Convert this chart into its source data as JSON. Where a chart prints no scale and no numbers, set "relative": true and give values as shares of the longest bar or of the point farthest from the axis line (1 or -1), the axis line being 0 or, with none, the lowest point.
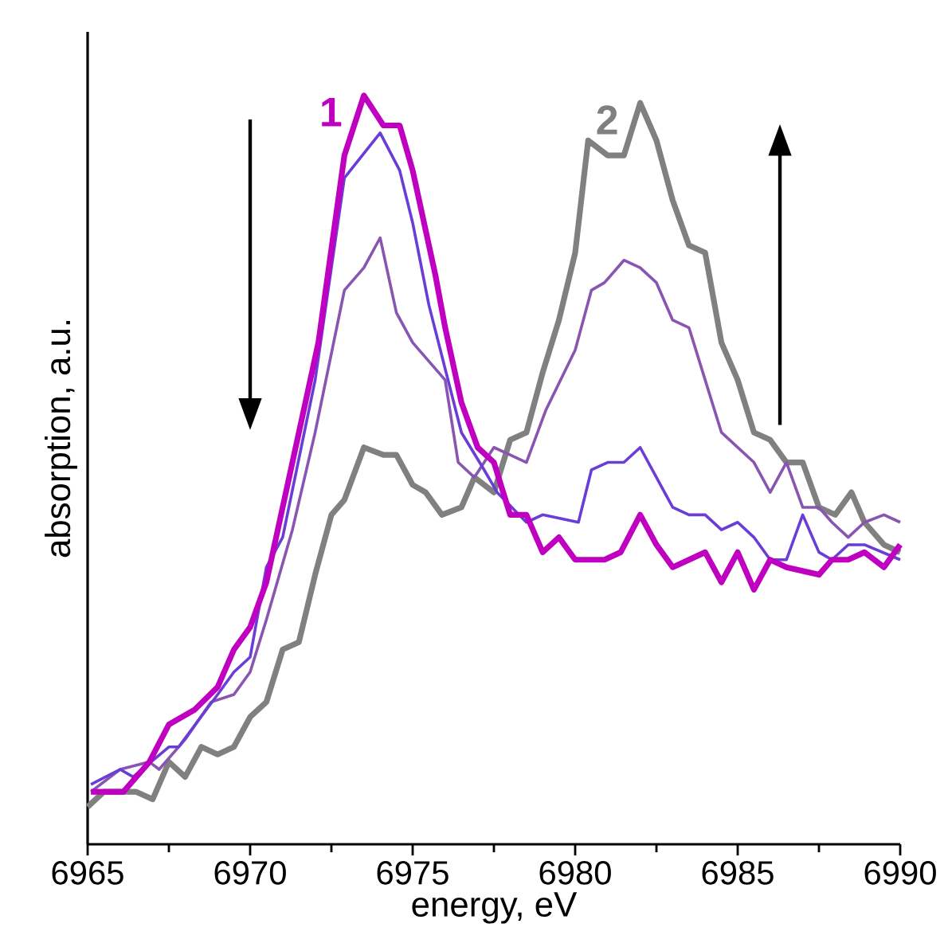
{
  "chart_data": {
    "type": "line",
    "relative": true,
    "xlabel": "energy, eV",
    "ylabel": "absorption, a.u.",
    "xlim": [
      6965,
      6990
    ],
    "xticks": [
      6965,
      6970,
      6975,
      6980,
      6985,
      6990
    ],
    "series": [
      {
        "name": "2",
        "color": "#808080",
        "x": [
          6965.0,
          6965.5,
          6966.1,
          6966.5,
          6967.0,
          6967.5,
          6968.0,
          6968.5,
          6969.0,
          6969.5,
          6970.0,
          6970.5,
          6971.0,
          6971.5,
          6972.0,
          6972.5,
          6972.9,
          6973.5,
          6974.1,
          6974.5,
          6975.0,
          6975.4,
          6975.9,
          6976.5,
          6976.9,
          6977.5,
          6978.0,
          6978.5,
          6979.0,
          6979.5,
          6980.0,
          6980.4,
          6981.0,
          6981.5,
          6982.0,
          6982.5,
          6983.0,
          6983.5,
          6984.0,
          6984.5,
          6985.0,
          6985.5,
          6986.0,
          6986.5,
          6987.0,
          6987.5,
          6988.0,
          6988.5,
          6988.9,
          6989.5,
          6990.0
        ],
        "values": [
          0.05,
          0.07,
          0.07,
          0.07,
          0.06,
          0.11,
          0.09,
          0.13,
          0.12,
          0.13,
          0.17,
          0.19,
          0.26,
          0.27,
          0.36,
          0.44,
          0.46,
          0.53,
          0.52,
          0.52,
          0.48,
          0.47,
          0.44,
          0.45,
          0.49,
          0.47,
          0.54,
          0.55,
          0.63,
          0.7,
          0.79,
          0.94,
          0.92,
          0.92,
          0.99,
          0.94,
          0.86,
          0.8,
          0.79,
          0.67,
          0.62,
          0.55,
          0.54,
          0.51,
          0.51,
          0.45,
          0.44,
          0.47,
          0.43,
          0.4,
          0.39
        ]
      },
      {
        "color": "#8855b0",
        "x": [
          6965.1,
          6966.0,
          6966.9,
          6967.2,
          6968.0,
          6968.8,
          6969.5,
          6970.0,
          6970.5,
          6971.3,
          6972.0,
          6972.9,
          6973.5,
          6974.0,
          6974.5,
          6975.0,
          6976.0,
          6976.4,
          6976.9,
          6977.5,
          6978.0,
          6978.5,
          6979.1,
          6980.0,
          6980.5,
          6980.9,
          6981.5,
          6982.0,
          6982.5,
          6983.0,
          6983.5,
          6984.0,
          6984.5,
          6985.5,
          6986.0,
          6986.5,
          6987.0,
          6987.5,
          6987.9,
          6988.4,
          6988.9,
          6989.5,
          6990.0
        ],
        "values": [
          0.07,
          0.1,
          0.11,
          0.1,
          0.14,
          0.19,
          0.2,
          0.23,
          0.3,
          0.42,
          0.55,
          0.74,
          0.77,
          0.81,
          0.71,
          0.67,
          0.62,
          0.51,
          0.49,
          0.53,
          0.52,
          0.51,
          0.58,
          0.66,
          0.74,
          0.75,
          0.78,
          0.77,
          0.75,
          0.7,
          0.69,
          0.62,
          0.55,
          0.51,
          0.47,
          0.51,
          0.45,
          0.45,
          0.43,
          0.41,
          0.43,
          0.44,
          0.43
        ]
      },
      {
        "color": "#6a3dd6",
        "x": [
          6965.1,
          6966.0,
          6966.4,
          6967.5,
          6967.8,
          6969.0,
          6969.5,
          6970.0,
          6970.5,
          6971.0,
          6972.0,
          6972.9,
          6974.0,
          6974.6,
          6975.0,
          6975.5,
          6976.5,
          6977.2,
          6977.6,
          6978.5,
          6979.0,
          6980.1,
          6980.5,
          6981.0,
          6981.5,
          6982.0,
          6982.5,
          6983.0,
          6983.5,
          6984.0,
          6984.5,
          6985.0,
          6985.5,
          6986.0,
          6986.5,
          6987.0,
          6987.5,
          6987.9,
          6988.4,
          6988.9,
          6990.0
        ],
        "values": [
          0.08,
          0.1,
          0.09,
          0.13,
          0.13,
          0.2,
          0.23,
          0.25,
          0.37,
          0.41,
          0.62,
          0.89,
          0.95,
          0.9,
          0.83,
          0.72,
          0.55,
          0.5,
          0.47,
          0.43,
          0.44,
          0.43,
          0.5,
          0.51,
          0.51,
          0.53,
          0.49,
          0.45,
          0.44,
          0.44,
          0.42,
          0.43,
          0.41,
          0.38,
          0.38,
          0.44,
          0.39,
          0.38,
          0.4,
          0.4,
          0.38
        ]
      },
      {
        "name": "1",
        "color": "#c000c0",
        "x": [
          6965.1,
          6966.1,
          6966.9,
          6967.5,
          6968.3,
          6969.0,
          6969.5,
          6970.0,
          6970.5,
          6971.3,
          6972.1,
          6972.9,
          6973.5,
          6974.1,
          6974.6,
          6975.0,
          6975.7,
          6976.0,
          6976.5,
          6977.0,
          6977.5,
          6978.0,
          6978.5,
          6979.0,
          6979.5,
          6980.0,
          6980.4,
          6980.9,
          6981.4,
          6982.0,
          6982.5,
          6983.0,
          6984.0,
          6984.5,
          6985.0,
          6985.5,
          6986.0,
          6986.5,
          6987.5,
          6987.9,
          6988.4,
          6988.9,
          6989.5,
          6990.0
        ],
        "values": [
          0.07,
          0.07,
          0.11,
          0.16,
          0.18,
          0.21,
          0.26,
          0.29,
          0.35,
          0.51,
          0.67,
          0.92,
          1.0,
          0.96,
          0.96,
          0.9,
          0.76,
          0.69,
          0.59,
          0.53,
          0.51,
          0.44,
          0.44,
          0.39,
          0.41,
          0.38,
          0.38,
          0.38,
          0.39,
          0.44,
          0.4,
          0.37,
          0.39,
          0.35,
          0.39,
          0.34,
          0.38,
          0.37,
          0.36,
          0.38,
          0.38,
          0.39,
          0.37,
          0.4
        ]
      }
    ]
  }
}
